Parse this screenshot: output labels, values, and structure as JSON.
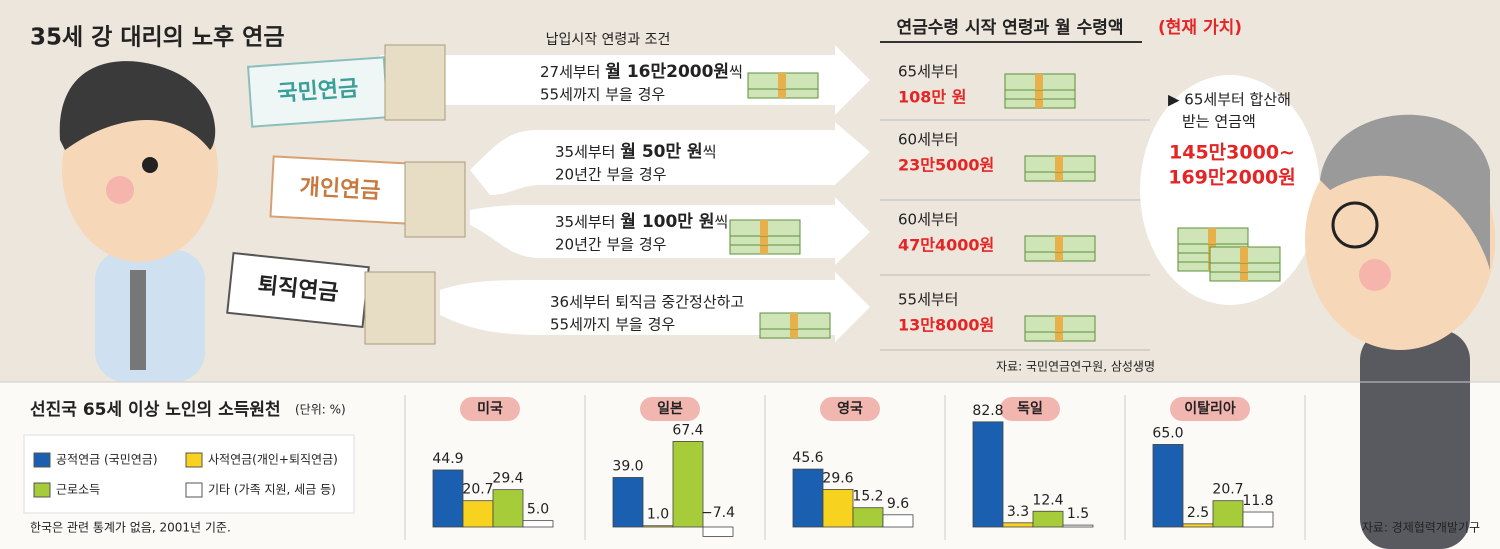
{
  "title": "35세 강 대리의 노후 연금",
  "payment_header": "납입시작 연령과 조건",
  "receipt_header": "연금수령 시작 연령과 월 수령액",
  "receipt_header_note": "(현재 가치)",
  "plans": [
    "국민연금",
    "개인연금",
    "퇴직연금"
  ],
  "conditions": [
    {
      "line1": [
        {
          "text": "27세부터 "
        },
        {
          "text": "월 16만2000원",
          "bold": true
        },
        {
          "text": "씩"
        }
      ],
      "line2": "55세까지 부을 경우"
    },
    {
      "line1": [
        {
          "text": "35세부터 "
        },
        {
          "text": "월 50만 원",
          "bold": true
        },
        {
          "text": "씩"
        }
      ],
      "line2": "20년간 부을 경우"
    },
    {
      "line1": [
        {
          "text": "35세부터 "
        },
        {
          "text": "월 100만 원",
          "bold": true
        },
        {
          "text": "씩"
        }
      ],
      "line2": "20년간 부을 경우"
    },
    {
      "line1": [
        {
          "text": "36세부터 퇴직금 중간정산하고"
        }
      ],
      "line2": "55세까지 부을 경우"
    }
  ],
  "receipts": [
    {
      "age": "65세부터",
      "amount": "108만 원"
    },
    {
      "age": "60세부터",
      "amount": "23만5000원"
    },
    {
      "age": "60세부터",
      "amount": "47만4000원"
    },
    {
      "age": "55세부터",
      "amount": "13만8000원"
    }
  ],
  "total": {
    "note": [
      "▶ 65세부터 합산해",
      "받는 연금액"
    ],
    "amount": [
      "145만3000~",
      "169만2000원"
    ]
  },
  "source_top": "자료: 국민연금연구원, 삼성생명",
  "income": {
    "title": "선진국 65세 이상 노인의 소득원천",
    "unit": "(단위: %)",
    "legend": [
      {
        "name": "공적연금 (국민연금)",
        "color": "#1a5fb0"
      },
      {
        "name": "사적연금(개인+퇴직연금)",
        "color": "#f7d21e"
      },
      {
        "name": "근로소득",
        "color": "#a6cc3a"
      },
      {
        "name": "기타 (가족 지원, 세금 등)",
        "color": "#ffffff"
      }
    ],
    "note": "한국은 관련 통계가 없음, 2001년 기준.",
    "source": "자료: 경제협력개발기구"
  },
  "chart_data": [
    {
      "type": "bar",
      "title": "미국",
      "values": [
        44.9,
        20.7,
        29.4,
        5.0
      ],
      "value_labels": [
        "44.9",
        "20.7",
        "29.4",
        "5.0"
      ]
    },
    {
      "type": "bar",
      "title": "일본",
      "values": [
        39.0,
        1.0,
        67.4,
        -7.4
      ],
      "value_labels": [
        "39.0",
        "1.0",
        "67.4",
        "−7.4"
      ]
    },
    {
      "type": "bar",
      "title": "영국",
      "values": [
        45.6,
        29.6,
        15.2,
        9.6
      ],
      "value_labels": [
        "45.6",
        "29.6",
        "15.2",
        "9.6"
      ]
    },
    {
      "type": "bar",
      "title": "독일",
      "values": [
        82.8,
        3.3,
        12.4,
        1.5
      ],
      "value_labels": [
        "82.8",
        "3.3",
        "12.4",
        "1.5"
      ]
    },
    {
      "type": "bar",
      "title": "이탈리아",
      "values": [
        65.0,
        2.5,
        20.7,
        11.8
      ],
      "value_labels": [
        "65.0",
        "2.5",
        "20.7",
        "11.8"
      ]
    }
  ]
}
